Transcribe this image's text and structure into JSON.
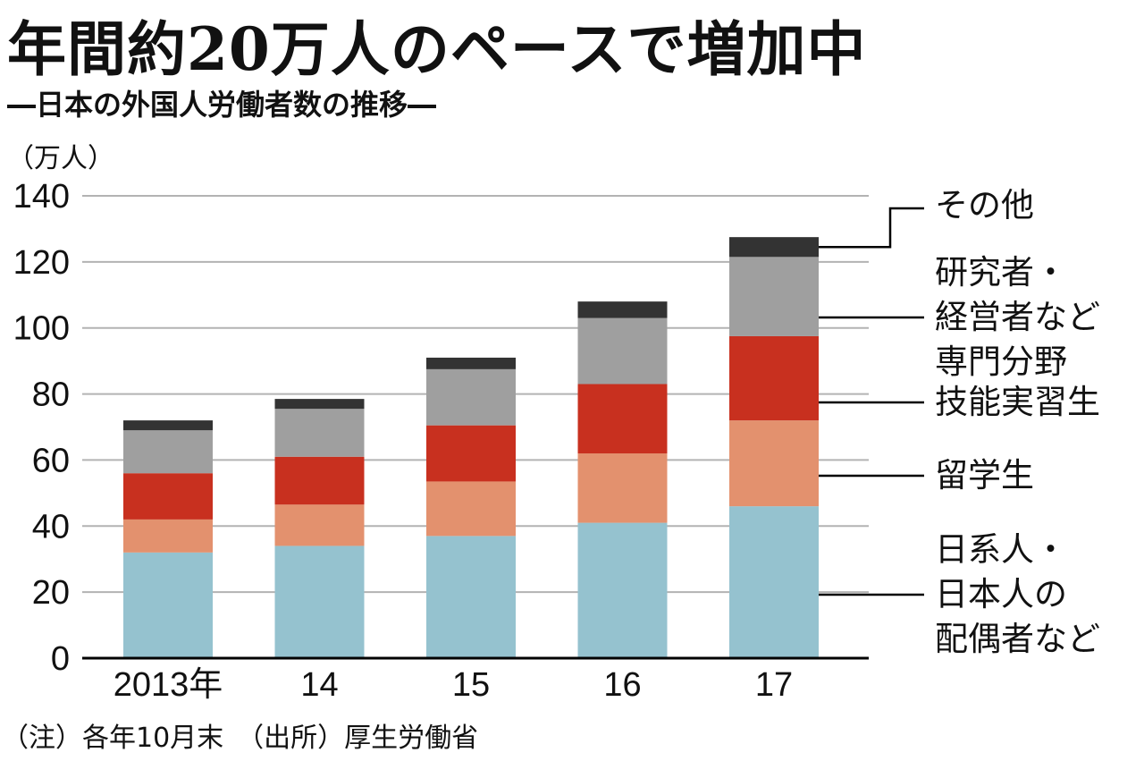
{
  "title": "年間約20万人のペースで増加中",
  "subtitle": "―日本の外国人労働者数の推移―",
  "unit_label": "（万人）",
  "footnote": "（注）各年10月末　（出所）厚生労働省",
  "colors": {
    "nikkei": "#95c2cf",
    "ryugakusei": "#e3916e",
    "ginou": "#c8301f",
    "senmon": "#9f9f9f",
    "sonota": "#333333",
    "grid": "#b3b3b3",
    "axis": "#000000"
  },
  "chart_data": {
    "type": "bar",
    "stacked": true,
    "categories": [
      "2013年",
      "14",
      "15",
      "16",
      "17"
    ],
    "ylim": [
      0,
      140
    ],
    "yticks": [
      0,
      20,
      40,
      60,
      80,
      100,
      120,
      140
    ],
    "grid": true,
    "series": [
      {
        "name": "日系人・日本人の配偶者など",
        "color_key": "nikkei",
        "values": [
          32,
          34,
          37,
          41,
          46
        ]
      },
      {
        "name": "留学生",
        "color_key": "ryugakusei",
        "values": [
          10,
          12.5,
          16.5,
          21,
          26
        ]
      },
      {
        "name": "技能実習生",
        "color_key": "ginou",
        "values": [
          14,
          14.5,
          17,
          21,
          25.5
        ]
      },
      {
        "name": "研究者・経営者など専門分野",
        "color_key": "senmon",
        "values": [
          13,
          14.5,
          17,
          20,
          24
        ]
      },
      {
        "name": "その他",
        "color_key": "sonota",
        "values": [
          3,
          3,
          3.5,
          5,
          6
        ]
      }
    ]
  },
  "legend": [
    {
      "label_lines": [
        "その他"
      ],
      "series_index": 4
    },
    {
      "label_lines": [
        "研究者・",
        "経営者など",
        "専門分野"
      ],
      "series_index": 3
    },
    {
      "label_lines": [
        "技能実習生"
      ],
      "series_index": 2
    },
    {
      "label_lines": [
        "留学生"
      ],
      "series_index": 1
    },
    {
      "label_lines": [
        "日系人・",
        "日本人の",
        "配偶者など"
      ],
      "series_index": 0
    }
  ]
}
